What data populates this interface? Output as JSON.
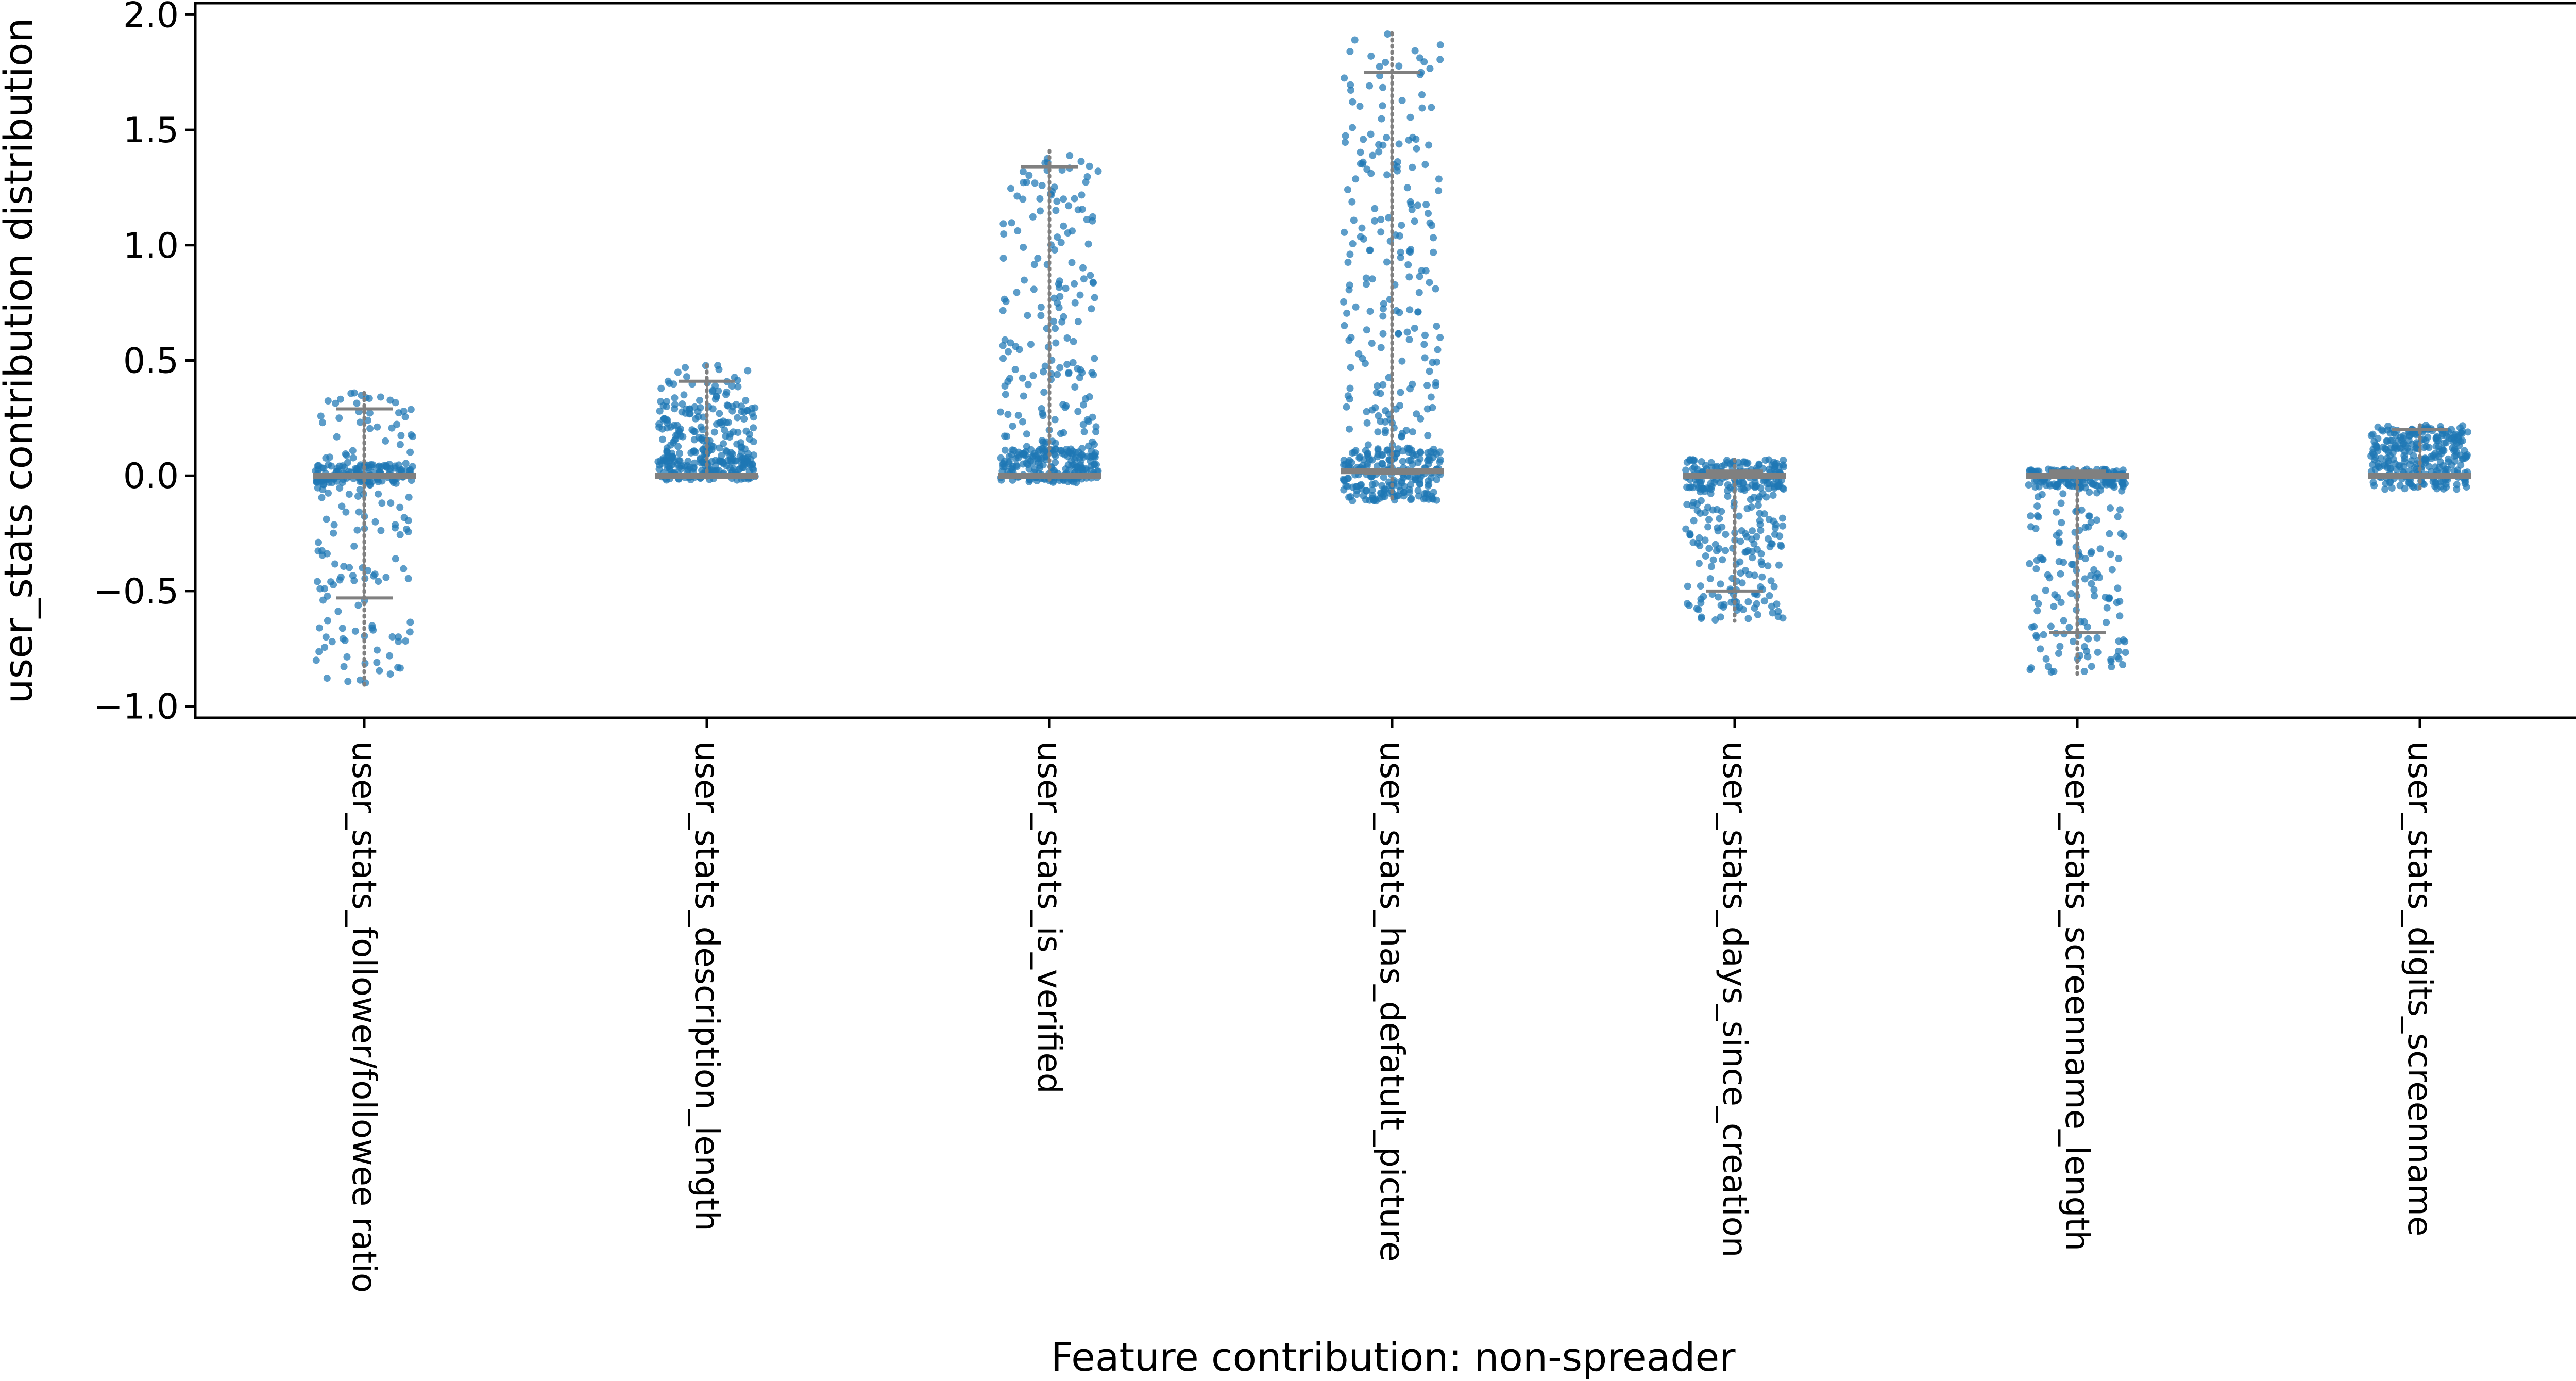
{
  "chart_data": {
    "type": "strip",
    "xlabel": "Feature contribution: non-spreader",
    "ylabel": "user_stats contribution distribution",
    "ylim": [
      -1.05,
      2.05
    ],
    "yticks": [
      -1.0,
      -0.5,
      0.0,
      0.5,
      1.0,
      1.5,
      2.0
    ],
    "ytick_labels": [
      "−1.0",
      "−0.5",
      "0.0",
      "0.5",
      "1.0",
      "1.5",
      "2.0"
    ],
    "grid": false,
    "legend": false,
    "point_color": "#1f77b4",
    "box_color": "#808080",
    "categories": [
      "user_stats_follower/followee ratio",
      "user_stats_description_length",
      "user_stats_is_verified",
      "user_stats_has_defatult_picture",
      "user_stats_days_since_creation",
      "user_stats_screenname_length",
      "user_stats_digits_screenname"
    ],
    "distributions": [
      {
        "min": -0.91,
        "q1": -0.53,
        "median": 0.0,
        "q3": 0.02,
        "max": 0.36,
        "whisker_low": -0.53,
        "whisker_high": 0.29
      },
      {
        "min": -0.02,
        "q1": 0.0,
        "median": 0.0,
        "q3": 0.01,
        "max": 0.48,
        "whisker_low": 0.0,
        "whisker_high": 0.41
      },
      {
        "min": -0.03,
        "q1": 0.0,
        "median": 0.0,
        "q3": 0.02,
        "max": 1.41,
        "whisker_low": 0.0,
        "whisker_high": 1.34
      },
      {
        "min": -0.11,
        "q1": 0.01,
        "median": 0.02,
        "q3": 0.03,
        "max": 1.92,
        "whisker_low": 0.01,
        "whisker_high": 1.75
      },
      {
        "min": -0.63,
        "q1": 0.0,
        "median": 0.0,
        "q3": 0.02,
        "max": 0.07,
        "whisker_low": -0.5,
        "whisker_high": 0.02
      },
      {
        "min": -0.86,
        "q1": -0.68,
        "median": 0.0,
        "q3": 0.02,
        "max": 0.03,
        "whisker_low": -0.68,
        "whisker_high": 0.02
      },
      {
        "min": -0.06,
        "q1": 0.0,
        "median": 0.0,
        "q3": 0.01,
        "max": 0.22,
        "whisker_low": 0.0,
        "whisker_high": 0.2
      }
    ]
  }
}
